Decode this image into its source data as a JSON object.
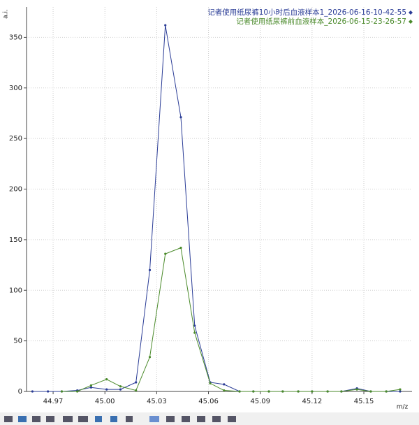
{
  "chart_data": {
    "type": "line",
    "x_label": "m/z",
    "y_label": "a.i.",
    "x": [
      44.958,
      44.967,
      44.975,
      44.984,
      44.992,
      45.001,
      45.009,
      45.018,
      45.026,
      45.035,
      45.044,
      45.052,
      45.061,
      45.069,
      45.078,
      45.086,
      45.095,
      45.103,
      45.112,
      45.12,
      45.129,
      45.137,
      45.146,
      45.154,
      45.163,
      45.171
    ],
    "series": [
      {
        "name": "记者使用纸尿裤10小时后血液样本1_2026-06-16-10-42-55",
        "color": "#2a3c96",
        "values": [
          0,
          0,
          0,
          1,
          4,
          2,
          2,
          9,
          120,
          362,
          271,
          65,
          9,
          7,
          0,
          0,
          0,
          0,
          0,
          0,
          0,
          0,
          3,
          0,
          0,
          0
        ]
      },
      {
        "name": "记者使用纸尿裤前血液样本_2026-06-15-23-26-57",
        "color": "#4a8a2a",
        "values": [
          null,
          null,
          0,
          0,
          6,
          12,
          5,
          1,
          34,
          136,
          142,
          58,
          8,
          1,
          0,
          0,
          0,
          0,
          0,
          0,
          0,
          0,
          2,
          0,
          0,
          2
        ]
      }
    ],
    "xlim": [
      44.9546,
      45.1779
    ],
    "ylim": [
      0,
      380
    ],
    "xticks": [
      44.97,
      {
        "value": 45.0,
        "label": "45.00"
      },
      45.03,
      45.06,
      45.09,
      45.12,
      45.15
    ],
    "yticks": [
      0,
      50,
      100,
      150,
      200,
      250,
      300,
      350
    ],
    "grid": true,
    "legend": "upper right"
  }
}
